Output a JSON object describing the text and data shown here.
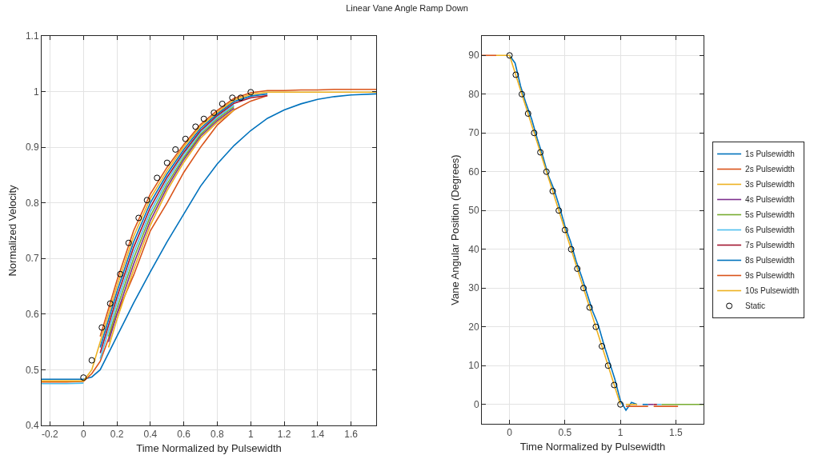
{
  "chart_data": [
    {
      "type": "line",
      "title": "Linear Vane Angle Ramp Down",
      "xlabel": "Time Normalized by Pulsewidth",
      "ylabel": "Normalized Velocity",
      "x": [
        -0.25,
        -0.1,
        0,
        0.05,
        0.1,
        0.15,
        0.2,
        0.25,
        0.3,
        0.4,
        0.5,
        0.6,
        0.7,
        0.8,
        0.9,
        1.0,
        1.1,
        1.2,
        1.3,
        1.4,
        1.5,
        1.6,
        1.75
      ],
      "xlim": [
        -0.25,
        1.75
      ],
      "xticks": [
        -0.2,
        0,
        0.2,
        0.4,
        0.6,
        0.8,
        1,
        1.2,
        1.4,
        1.6
      ],
      "ylim": [
        0.4,
        1.1
      ],
      "yticks": [
        0.4,
        0.5,
        0.6,
        0.7,
        0.8,
        0.9,
        1,
        1.1
      ],
      "grid": true,
      "legend": false,
      "series": [
        {
          "color": "#0072bd",
          "values": [
            0.483,
            0.483,
            0.483,
            0.487,
            0.5,
            0.53,
            0.56,
            0.59,
            0.62,
            0.676,
            0.73,
            0.78,
            0.83,
            0.87,
            0.903,
            0.93,
            0.952,
            0.967,
            0.978,
            0.986,
            0.991,
            0.994,
            0.996
          ]
        },
        {
          "color": "#d95319",
          "values": [
            0.478,
            0.478,
            0.479,
            0.493,
            0.515,
            0.556,
            0.6,
            0.635,
            0.67,
            0.75,
            0.8,
            0.855,
            0.9,
            0.94,
            0.967,
            0.983,
            0.993,
            null,
            null,
            null,
            null,
            null,
            null
          ]
        },
        {
          "color": "#edb120",
          "values": [
            null,
            null,
            null,
            null,
            null,
            0.54,
            0.59,
            0.635,
            0.68,
            0.76,
            0.822,
            0.873,
            0.916,
            0.945,
            0.967,
            null,
            null,
            null,
            null,
            null,
            null,
            null,
            null
          ]
        },
        {
          "color": "#7e2f8e",
          "values": [
            null,
            null,
            null,
            null,
            null,
            0.55,
            0.6,
            0.645,
            0.69,
            0.768,
            0.828,
            0.878,
            0.92,
            0.948,
            0.97,
            null,
            null,
            null,
            null,
            null,
            null,
            null,
            null
          ]
        },
        {
          "color": "#77ac30",
          "values": [
            null,
            null,
            null,
            null,
            null,
            0.56,
            0.61,
            0.655,
            0.7,
            0.776,
            0.834,
            0.882,
            0.923,
            0.951,
            0.973,
            null,
            null,
            null,
            null,
            null,
            null,
            null,
            null
          ]
        },
        {
          "color": "#4dbeee",
          "values": [
            0.475,
            0.475,
            0.476,
            null,
            0.52,
            0.57,
            0.62,
            0.665,
            0.71,
            0.784,
            0.84,
            0.887,
            0.927,
            0.954,
            0.976,
            null,
            null,
            null,
            null,
            null,
            null,
            null,
            null
          ]
        },
        {
          "color": "#a2142f",
          "values": [
            null,
            null,
            null,
            null,
            0.53,
            0.58,
            0.63,
            0.675,
            0.72,
            0.792,
            0.846,
            0.891,
            0.93,
            0.957,
            0.979,
            0.989,
            0.993,
            null,
            null,
            null,
            null,
            null,
            null
          ]
        },
        {
          "color": "#0072bd",
          "values": [
            null,
            null,
            null,
            null,
            0.54,
            0.59,
            0.64,
            0.685,
            0.73,
            0.8,
            0.852,
            0.896,
            0.934,
            0.96,
            0.982,
            0.992,
            0.996,
            null,
            null,
            null,
            null,
            null,
            null
          ]
        },
        {
          "color": "#d95319",
          "values": [
            null,
            null,
            null,
            null,
            0.56,
            0.61,
            0.66,
            0.705,
            0.75,
            0.816,
            0.864,
            0.905,
            0.941,
            0.966,
            0.988,
            0.998,
            1.002,
            1.002,
            1.003,
            1.003,
            1.004,
            1.004,
            1.004
          ]
        },
        {
          "color": "#edb120",
          "values": [
            0.48,
            0.48,
            0.48,
            0.5,
            0.55,
            0.6,
            0.65,
            0.695,
            0.74,
            0.808,
            0.858,
            0.901,
            0.938,
            0.963,
            0.985,
            0.995,
            0.999,
            0.999,
            0.999,
            0.999,
            0.999,
            0.999,
            0.999
          ]
        },
        {
          "type": "scatter",
          "marker": "circle",
          "color": "#000000",
          "x": [
            0,
            0.05,
            0.11,
            0.16,
            0.22,
            0.27,
            0.33,
            0.38,
            0.44,
            0.5,
            0.55,
            0.61,
            0.67,
            0.72,
            0.78,
            0.83,
            0.89,
            0.94,
            1.0
          ],
          "values": [
            0.486,
            0.517,
            0.576,
            0.619,
            0.672,
            0.728,
            0.773,
            0.805,
            0.845,
            0.872,
            0.896,
            0.915,
            0.937,
            0.951,
            0.962,
            0.978,
            0.989,
            0.989,
            0.999
          ]
        }
      ]
    },
    {
      "type": "line",
      "xlabel": "Time Normalized by Pulsewidth",
      "ylabel": "Vane Angular Position (Degrees)",
      "xlim": [
        -0.25,
        1.75
      ],
      "xticks": [
        0,
        0.5,
        1,
        1.5
      ],
      "ylim": [
        -5,
        95
      ],
      "yticks": [
        0,
        10,
        20,
        30,
        40,
        50,
        60,
        70,
        80,
        90
      ],
      "grid": true,
      "legend": "right",
      "series": [
        {
          "name": "1s Pulsewidth",
          "color": "#0072bd",
          "x": [
            0,
            0.05,
            0.1,
            0.15,
            0.2,
            0.25,
            0.3,
            0.35,
            0.4,
            0.45,
            0.5,
            0.55,
            0.6,
            0.65,
            0.7,
            0.75,
            0.8,
            0.85,
            0.9,
            0.95,
            1.0,
            1.05,
            1.1,
            1.15
          ],
          "values": [
            90,
            88,
            82,
            77.5,
            73.5,
            68.5,
            64,
            59,
            55.5,
            51,
            46,
            42,
            37,
            33,
            28.5,
            24,
            20.5,
            15.5,
            11,
            6.5,
            1,
            -1.5,
            0.5,
            0
          ]
        },
        {
          "name": "2s Pulsewidth",
          "color": "#d95319",
          "x": [
            -0.25,
            -0.12,
            1.0,
            1.05,
            1.25
          ],
          "values": [
            90,
            90,
            null,
            -0.5,
            -0.5
          ]
        },
        {
          "name": "3s Pulsewidth",
          "color": "#edb120",
          "x": [
            1.05,
            1.15
          ],
          "values": [
            0,
            0
          ]
        },
        {
          "name": "4s Pulsewidth",
          "color": "#7e2f8e",
          "x": [
            1.25,
            1.3
          ],
          "values": [
            0,
            0
          ]
        },
        {
          "name": "5s Pulsewidth",
          "color": "#77ac30",
          "x": [
            1.37,
            1.75
          ],
          "values": [
            0,
            0
          ]
        },
        {
          "name": "6s Pulsewidth",
          "color": "#4dbeee",
          "x": [
            1.33,
            1.37
          ],
          "values": [
            0,
            0
          ]
        },
        {
          "name": "7s Pulsewidth",
          "color": "#a2142f",
          "x": [
            1.3,
            1.33
          ],
          "values": [
            0,
            0
          ]
        },
        {
          "name": "8s Pulsewidth",
          "color": "#0072bd",
          "x": [
            1.2,
            1.25
          ],
          "values": [
            0,
            0
          ]
        },
        {
          "name": "9s Pulsewidth",
          "color": "#d95319",
          "x": [
            1.3,
            1.52
          ],
          "values": [
            -0.5,
            -0.5
          ]
        },
        {
          "name": "10s Pulsewidth",
          "color": "#edb120",
          "x": [
            -0.12,
            0,
            0.05,
            0.1,
            0.15,
            0.2,
            0.25,
            0.3,
            0.35,
            0.4,
            0.45,
            0.5,
            0.55,
            0.6,
            0.65,
            0.7,
            0.75,
            0.8,
            0.85,
            0.9,
            0.95,
            1.0
          ],
          "values": [
            90,
            90,
            85.5,
            81,
            76.5,
            72,
            67.5,
            63,
            58.5,
            54,
            49.5,
            45,
            40.5,
            36,
            31.5,
            27,
            22.5,
            18,
            13.5,
            9,
            4.5,
            0
          ]
        },
        {
          "name": "Static",
          "type": "scatter",
          "marker": "circle",
          "color": "#000000",
          "x": [
            0,
            0.056,
            0.111,
            0.167,
            0.222,
            0.278,
            0.333,
            0.389,
            0.444,
            0.5,
            0.556,
            0.611,
            0.667,
            0.722,
            0.778,
            0.833,
            0.889,
            0.944,
            1.0
          ],
          "values": [
            90,
            85,
            80,
            75,
            70,
            65,
            60,
            55,
            50,
            45,
            40,
            35,
            30,
            25,
            20,
            15,
            10,
            5,
            0
          ]
        }
      ]
    }
  ]
}
